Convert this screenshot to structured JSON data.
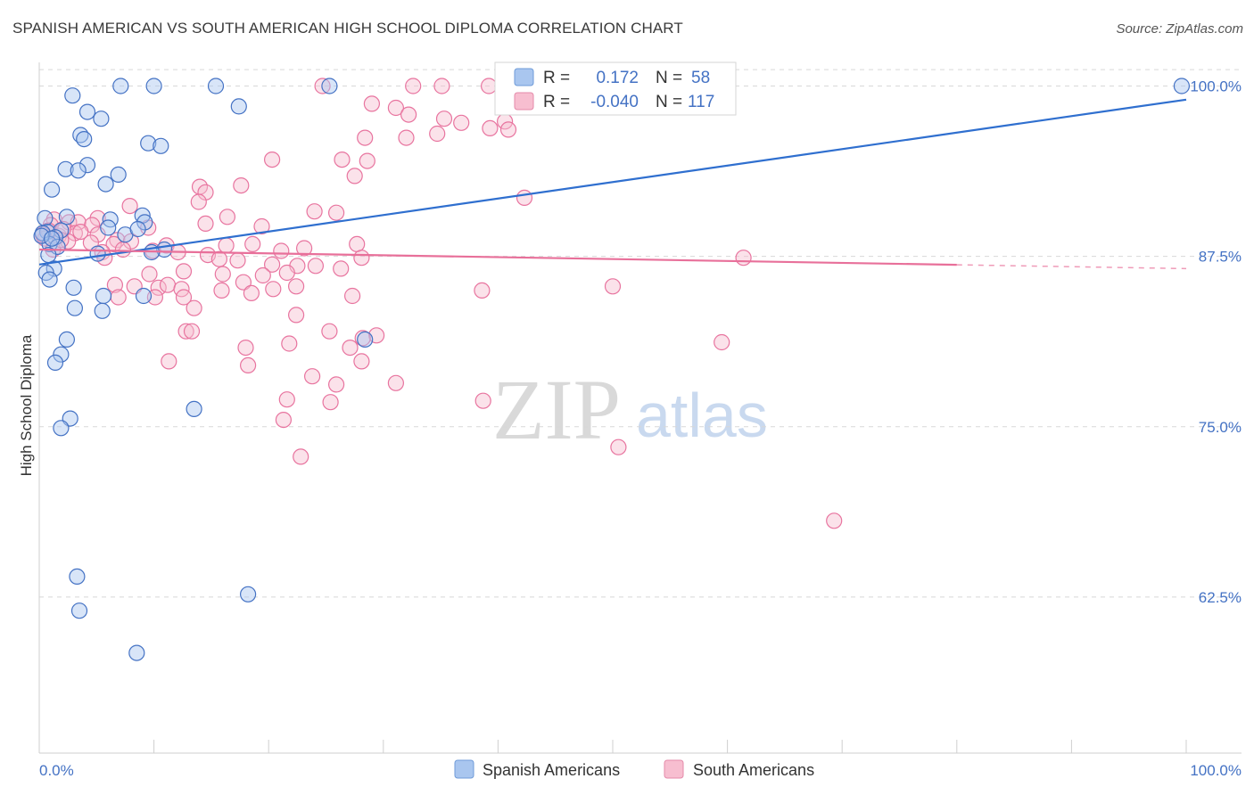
{
  "title": "SPANISH AMERICAN VS SOUTH AMERICAN HIGH SCHOOL DIPLOMA CORRELATION CHART",
  "source": "Source: ZipAtlas.com",
  "colors": {
    "blue": "#4472c4",
    "blue_fill": "#a9c6ef",
    "blue_line": "#2f6fcf",
    "pink": "#e8749f",
    "pink_fill": "#f7bed0",
    "pink_line": "#e8709a",
    "grid": "#d8d8d8"
  },
  "legend": {
    "r_label": "R =",
    "n_label": "N =",
    "rows": [
      {
        "r": "0.172",
        "n": "58"
      },
      {
        "r": "-0.040",
        "n": "117"
      }
    ]
  },
  "watermark": {
    "zip": "ZIP",
    "atlas": "atlas"
  },
  "chart_data": {
    "type": "scatter",
    "xlabel": "",
    "ylabel": "High School Diploma",
    "xlim": [
      0,
      100
    ],
    "ylim": [
      50.0,
      101.0
    ],
    "x_tick_labels": [
      "0.0%",
      "100.0%"
    ],
    "y_ticks": [
      {
        "value": 100.0,
        "label": "100.0%"
      },
      {
        "value": 87.5,
        "label": "87.5%"
      },
      {
        "value": 75.0,
        "label": "75.0%"
      },
      {
        "value": 62.5,
        "label": "62.5%"
      }
    ],
    "series": [
      {
        "name": "Spanish Americans",
        "r": 0.172,
        "n": 58,
        "trend": {
          "x0": 0,
          "y0": 86.9,
          "x1": 100,
          "y1": 99.0,
          "solid_until": 100
        },
        "points": [
          [
            7.1,
            100.0
          ],
          [
            10.0,
            100.0
          ],
          [
            15.4,
            100.0
          ],
          [
            25.3,
            100.0
          ],
          [
            99.6,
            100.0
          ],
          [
            2.9,
            99.3
          ],
          [
            17.4,
            98.5
          ],
          [
            4.2,
            98.1
          ],
          [
            5.4,
            97.6
          ],
          [
            3.6,
            96.4
          ],
          [
            3.9,
            96.1
          ],
          [
            9.5,
            95.8
          ],
          [
            10.6,
            95.6
          ],
          [
            4.2,
            94.2
          ],
          [
            2.3,
            93.9
          ],
          [
            3.4,
            93.8
          ],
          [
            6.9,
            93.5
          ],
          [
            5.8,
            92.8
          ],
          [
            1.1,
            92.4
          ],
          [
            6.2,
            90.2
          ],
          [
            9.0,
            90.5
          ],
          [
            0.5,
            90.3
          ],
          [
            2.4,
            90.4
          ],
          [
            9.2,
            90.0
          ],
          [
            1.9,
            89.4
          ],
          [
            0.7,
            89.3
          ],
          [
            6.0,
            89.6
          ],
          [
            7.5,
            89.1
          ],
          [
            8.6,
            89.5
          ],
          [
            0.3,
            89.2
          ],
          [
            1.4,
            88.9
          ],
          [
            0.9,
            88.4
          ],
          [
            10.9,
            88.0
          ],
          [
            1.6,
            88.2
          ],
          [
            5.1,
            87.7
          ],
          [
            0.8,
            87.6
          ],
          [
            9.8,
            87.8
          ],
          [
            1.3,
            86.6
          ],
          [
            0.6,
            86.3
          ],
          [
            0.9,
            85.8
          ],
          [
            3.0,
            85.2
          ],
          [
            5.6,
            84.6
          ],
          [
            9.1,
            84.6
          ],
          [
            3.1,
            83.7
          ],
          [
            5.5,
            83.5
          ],
          [
            2.4,
            81.4
          ],
          [
            1.9,
            80.3
          ],
          [
            1.4,
            79.7
          ],
          [
            28.4,
            81.4
          ],
          [
            13.5,
            76.3
          ],
          [
            2.7,
            75.6
          ],
          [
            1.9,
            74.9
          ],
          [
            3.3,
            64.0
          ],
          [
            18.2,
            62.7
          ],
          [
            3.5,
            61.5
          ],
          [
            8.5,
            58.4
          ],
          [
            0.2,
            89.0
          ],
          [
            1.1,
            88.8
          ]
        ]
      },
      {
        "name": "South Americans",
        "r": -0.04,
        "n": 117,
        "trend": {
          "x0": 0,
          "y0": 88.0,
          "x1": 100,
          "y1": 86.6,
          "solid_until": 80
        },
        "points": [
          [
            24.7,
            100.0
          ],
          [
            32.6,
            100.0
          ],
          [
            35.1,
            100.0
          ],
          [
            39.2,
            100.0
          ],
          [
            29.0,
            98.7
          ],
          [
            31.1,
            98.4
          ],
          [
            32.2,
            97.9
          ],
          [
            35.3,
            97.6
          ],
          [
            36.8,
            97.3
          ],
          [
            39.3,
            96.9
          ],
          [
            40.6,
            97.4
          ],
          [
            32.0,
            96.2
          ],
          [
            34.7,
            96.5
          ],
          [
            28.4,
            96.2
          ],
          [
            20.3,
            94.6
          ],
          [
            26.4,
            94.6
          ],
          [
            28.6,
            94.5
          ],
          [
            27.5,
            93.4
          ],
          [
            42.3,
            91.8
          ],
          [
            14.0,
            92.6
          ],
          [
            17.6,
            92.7
          ],
          [
            14.5,
            92.2
          ],
          [
            13.9,
            91.5
          ],
          [
            7.9,
            91.2
          ],
          [
            24.0,
            90.8
          ],
          [
            25.9,
            90.7
          ],
          [
            16.4,
            90.4
          ],
          [
            5.1,
            90.3
          ],
          [
            1.3,
            90.2
          ],
          [
            2.6,
            90.0
          ],
          [
            3.4,
            90.0
          ],
          [
            1.0,
            89.8
          ],
          [
            4.6,
            89.8
          ],
          [
            14.5,
            89.9
          ],
          [
            19.4,
            89.7
          ],
          [
            9.5,
            89.6
          ],
          [
            0.8,
            89.4
          ],
          [
            1.7,
            89.0
          ],
          [
            3.1,
            89.2
          ],
          [
            5.1,
            89.1
          ],
          [
            6.8,
            88.7
          ],
          [
            0.5,
            88.8
          ],
          [
            2.5,
            88.6
          ],
          [
            4.5,
            88.5
          ],
          [
            6.5,
            88.4
          ],
          [
            8.0,
            88.6
          ],
          [
            11.1,
            88.3
          ],
          [
            16.3,
            88.3
          ],
          [
            18.6,
            88.4
          ],
          [
            23.1,
            88.1
          ],
          [
            27.7,
            88.4
          ],
          [
            21.1,
            87.9
          ],
          [
            1.2,
            88.0
          ],
          [
            5.5,
            87.8
          ],
          [
            9.9,
            87.9
          ],
          [
            12.1,
            87.8
          ],
          [
            14.7,
            87.6
          ],
          [
            15.7,
            87.3
          ],
          [
            17.3,
            87.2
          ],
          [
            20.3,
            86.9
          ],
          [
            22.5,
            86.8
          ],
          [
            24.1,
            86.8
          ],
          [
            26.3,
            86.6
          ],
          [
            28.1,
            87.4
          ],
          [
            5.7,
            87.4
          ],
          [
            61.4,
            87.4
          ],
          [
            9.6,
            86.2
          ],
          [
            12.6,
            86.4
          ],
          [
            16.0,
            86.2
          ],
          [
            19.5,
            86.1
          ],
          [
            21.6,
            86.3
          ],
          [
            17.8,
            85.6
          ],
          [
            6.6,
            85.4
          ],
          [
            8.3,
            85.3
          ],
          [
            10.4,
            85.2
          ],
          [
            11.2,
            85.4
          ],
          [
            12.4,
            85.1
          ],
          [
            15.9,
            85.0
          ],
          [
            20.4,
            85.1
          ],
          [
            22.4,
            85.3
          ],
          [
            38.6,
            85.0
          ],
          [
            50.0,
            85.3
          ],
          [
            6.9,
            84.5
          ],
          [
            10.1,
            84.5
          ],
          [
            12.6,
            84.5
          ],
          [
            18.5,
            84.8
          ],
          [
            27.3,
            84.6
          ],
          [
            13.5,
            83.7
          ],
          [
            22.4,
            83.2
          ],
          [
            12.8,
            82.0
          ],
          [
            13.3,
            82.0
          ],
          [
            25.3,
            82.0
          ],
          [
            29.4,
            81.7
          ],
          [
            28.2,
            81.5
          ],
          [
            21.8,
            81.1
          ],
          [
            27.1,
            80.8
          ],
          [
            59.5,
            81.2
          ],
          [
            18.0,
            80.8
          ],
          [
            11.3,
            79.8
          ],
          [
            18.2,
            79.5
          ],
          [
            28.1,
            79.8
          ],
          [
            23.8,
            78.7
          ],
          [
            25.9,
            78.1
          ],
          [
            31.1,
            78.2
          ],
          [
            21.6,
            77.0
          ],
          [
            25.4,
            76.8
          ],
          [
            38.7,
            76.9
          ],
          [
            21.3,
            75.5
          ],
          [
            50.5,
            73.5
          ],
          [
            22.8,
            72.8
          ],
          [
            69.3,
            68.1
          ],
          [
            40.9,
            96.8
          ],
          [
            3.6,
            89.3
          ],
          [
            7.3,
            88.0
          ],
          [
            2.1,
            89.5
          ],
          [
            0.3,
            89.1
          ],
          [
            1.9,
            88.7
          ]
        ]
      }
    ]
  },
  "bottom_legend": [
    {
      "label": "Spanish Americans"
    },
    {
      "label": "South Americans"
    }
  ]
}
